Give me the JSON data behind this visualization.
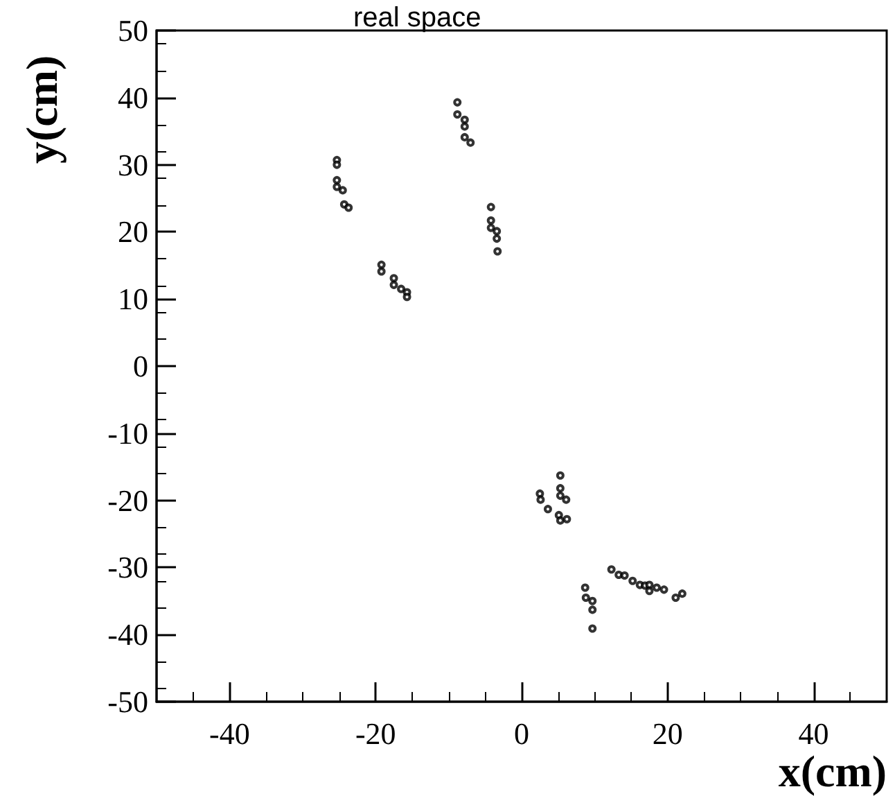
{
  "chart_data": {
    "type": "scatter",
    "title": "real space",
    "xlabel": "x(cm)",
    "ylabel": "y(cm)",
    "x": [
      -25.3,
      -25.3,
      -25.3,
      -25.3,
      -24.5,
      -24.3,
      -23.7,
      -8.8,
      -8.8,
      -7.8,
      -7.8,
      -7.8,
      -7.0,
      -4.2,
      -4.2,
      -4.2,
      -3.4,
      -3.4,
      -3.3,
      -19.2,
      -19.2,
      -17.5,
      -17.5,
      -16.5,
      -15.7,
      -15.7,
      5.3,
      5.3,
      5.3,
      6.1,
      2.5,
      2.6,
      3.6,
      5.1,
      5.3,
      6.2,
      8.7,
      8.8,
      9.7,
      9.7,
      9.7,
      12.3,
      13.3,
      14.1,
      15.2,
      16.2,
      16.9,
      17.5,
      17.5,
      18.5,
      19.5,
      21.1,
      22.0
    ],
    "values": [
      30.7,
      30.0,
      27.7,
      26.7,
      26.2,
      24.1,
      23.6,
      39.3,
      37.5,
      36.7,
      35.7,
      34.1,
      33.3,
      23.7,
      21.7,
      20.6,
      20.1,
      19.0,
      17.1,
      15.1,
      14.1,
      13.1,
      12.1,
      11.5,
      11.0,
      10.3,
      -16.3,
      -18.2,
      -19.3,
      -19.9,
      -19.0,
      -19.9,
      -21.3,
      -22.2,
      -23.0,
      -22.8,
      -33.0,
      -34.5,
      -35.0,
      -36.3,
      -39.1,
      -30.3,
      -31.1,
      -31.2,
      -32.0,
      -32.6,
      -32.7,
      -32.6,
      -33.5,
      -33.0,
      -33.3,
      -34.5,
      -33.9
    ],
    "color": "#000000",
    "marker": "circle",
    "grid": false,
    "xlim": [
      -50,
      50
    ],
    "xticks": [
      -40,
      -20,
      0,
      20,
      40
    ],
    "ylim": [
      -50,
      50
    ],
    "yticks": [
      -50,
      -40,
      -30,
      -20,
      -10,
      0,
      10,
      20,
      30,
      40,
      50
    ]
  }
}
